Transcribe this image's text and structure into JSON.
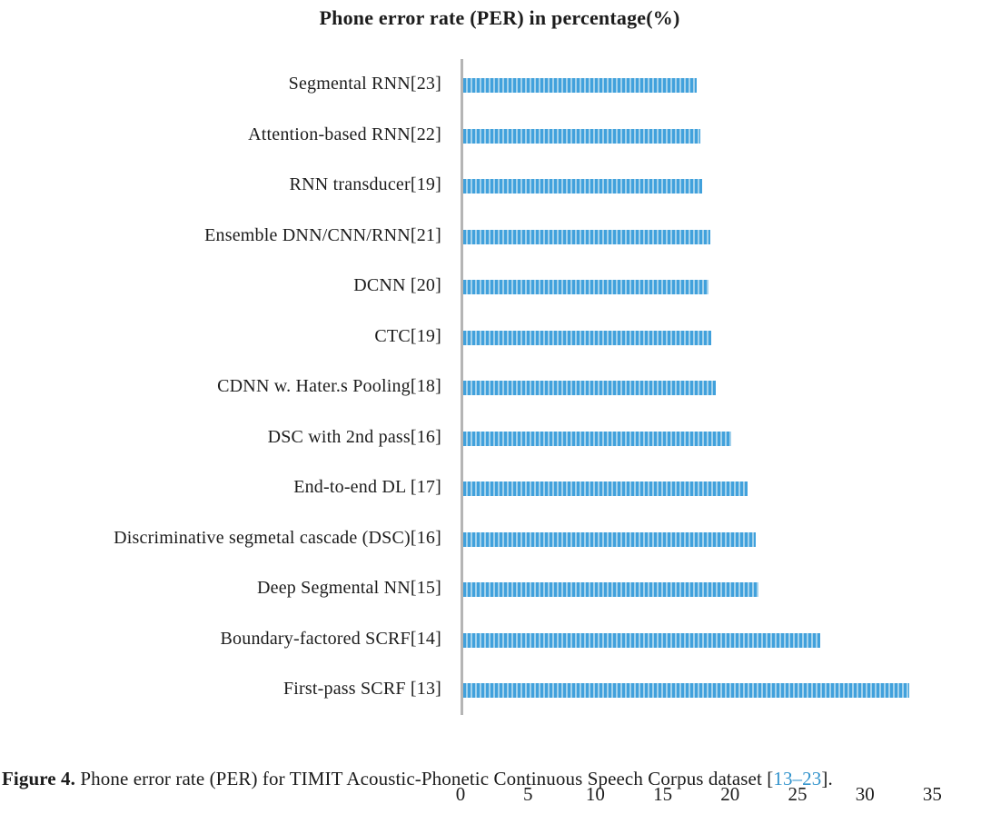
{
  "figure": {
    "caption": {
      "label_bold": "Figure 4.",
      "body": " Phone error rate (PER) for TIMIT Acoustic-Phonetic Continuous Speech Corpus dataset [",
      "citation_link": "13–23",
      "suffix": "]."
    }
  },
  "chart_data": {
    "type": "bar",
    "orientation": "horizontal",
    "title": "Phone error rate (PER) in percentage(%)",
    "categories": [
      "Segmental RNN[23]",
      "Attention-based RNN[22]",
      "RNN transducer[19]",
      "Ensemble DNN/CNN/RNN[21]",
      "DCNN [20]",
      "CTC[19]",
      "CDNN w. Hater.s Pooling[18]",
      "DSC with 2nd pass[16]",
      "End-to-end DL [17]",
      "Discriminative segmetal cascade (DSC)[16]",
      "Deep Segmental NN[15]",
      "Boundary-factored SCRF[14]",
      "First-pass SCRF [13]"
    ],
    "values": [
      17.3,
      17.6,
      17.7,
      18.3,
      18.2,
      18.4,
      18.7,
      19.9,
      21.1,
      21.7,
      21.9,
      26.5,
      33.1
    ],
    "xlabel": "",
    "ylabel": "",
    "xlim": [
      0,
      35
    ],
    "xticks": [
      0,
      5,
      10,
      15,
      20,
      25,
      30,
      35
    ],
    "grid": false,
    "legend": false,
    "colors": {
      "bar": "#41a1dc",
      "bar_stripe": "#a4d2ec",
      "axis_line": "#b5b5b5",
      "text": "#1c1c1c",
      "link": "#3193cc"
    }
  }
}
